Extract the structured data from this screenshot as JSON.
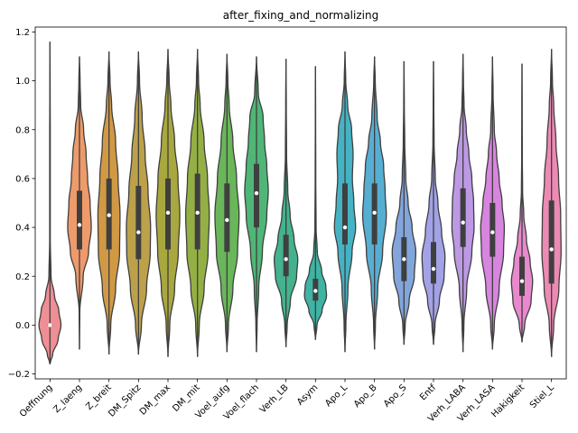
{
  "chart_data": {
    "type": "violin",
    "title": "after_fixing_and_normalizing",
    "xlabel": "",
    "ylabel": "",
    "ylim": [
      -0.22,
      1.22
    ],
    "yticks": [
      -0.2,
      0.0,
      0.2,
      0.4,
      0.6,
      0.8,
      1.0,
      1.2
    ],
    "ytick_labels": [
      "−0.2",
      "0.0",
      "0.2",
      "0.4",
      "0.6",
      "0.8",
      "1.0",
      "1.2"
    ],
    "grid": false,
    "legend": "none",
    "categories": [
      "Oeffnung",
      "Z_laeng",
      "Z_breit",
      "DM_Spitz",
      "DM_max",
      "DM_mit",
      "Voel_aufg",
      "Voel_flach",
      "Verh_LB",
      "Asym",
      "Apo_L",
      "Apo_B",
      "Apo_S",
      "Entf",
      "Verh_LABA",
      "Verh_LASA",
      "Hakigkeit",
      "Stiel_L"
    ],
    "colors": [
      "#ef8e94",
      "#ee9a6a",
      "#d19944",
      "#bca14a",
      "#a9a83e",
      "#94b045",
      "#6ab65a",
      "#4fb677",
      "#44b28f",
      "#3fb3a4",
      "#45b3c4",
      "#57aed3",
      "#82a6dc",
      "#a3a2e7",
      "#bd99e5",
      "#d785df",
      "#e889cd",
      "#ec8ab3"
    ],
    "violins": [
      {
        "min": -0.16,
        "q1": 0.0,
        "median": 0.0,
        "q3": 0.0,
        "max": 1.16,
        "shape": [
          [
            -0.16,
            0.0
          ],
          [
            -0.12,
            0.18
          ],
          [
            -0.06,
            0.55
          ],
          [
            0.0,
            0.75
          ],
          [
            0.06,
            0.6
          ],
          [
            0.12,
            0.3
          ],
          [
            0.2,
            0.07
          ],
          [
            0.35,
            0.02
          ],
          [
            0.5,
            0.02
          ],
          [
            0.75,
            0.02
          ],
          [
            1.0,
            0.01
          ],
          [
            1.16,
            0.0
          ]
        ]
      },
      {
        "min": -0.1,
        "q1": 0.31,
        "median": 0.41,
        "q3": 0.55,
        "max": 1.1,
        "shape": [
          [
            -0.1,
            0.0
          ],
          [
            0.05,
            0.02
          ],
          [
            0.2,
            0.25
          ],
          [
            0.3,
            0.62
          ],
          [
            0.4,
            0.8
          ],
          [
            0.5,
            0.72
          ],
          [
            0.6,
            0.55
          ],
          [
            0.7,
            0.45
          ],
          [
            0.8,
            0.28
          ],
          [
            0.9,
            0.08
          ],
          [
            1.0,
            0.04
          ],
          [
            1.1,
            0.0
          ]
        ]
      },
      {
        "min": -0.12,
        "q1": 0.31,
        "median": 0.45,
        "q3": 0.6,
        "max": 1.12,
        "shape": [
          [
            -0.12,
            0.0
          ],
          [
            0.0,
            0.12
          ],
          [
            0.15,
            0.45
          ],
          [
            0.3,
            0.72
          ],
          [
            0.45,
            0.75
          ],
          [
            0.6,
            0.62
          ],
          [
            0.75,
            0.45
          ],
          [
            0.9,
            0.18
          ],
          [
            1.0,
            0.07
          ],
          [
            1.12,
            0.0
          ]
        ]
      },
      {
        "min": -0.12,
        "q1": 0.27,
        "median": 0.38,
        "q3": 0.57,
        "max": 1.12,
        "shape": [
          [
            -0.12,
            0.0
          ],
          [
            0.0,
            0.2
          ],
          [
            0.15,
            0.55
          ],
          [
            0.3,
            0.8
          ],
          [
            0.4,
            0.82
          ],
          [
            0.55,
            0.65
          ],
          [
            0.7,
            0.45
          ],
          [
            0.85,
            0.25
          ],
          [
            1.0,
            0.07
          ],
          [
            1.12,
            0.0
          ]
        ]
      },
      {
        "min": -0.13,
        "q1": 0.31,
        "median": 0.46,
        "q3": 0.6,
        "max": 1.13,
        "shape": [
          [
            -0.13,
            0.0
          ],
          [
            0.0,
            0.12
          ],
          [
            0.15,
            0.45
          ],
          [
            0.3,
            0.7
          ],
          [
            0.45,
            0.8
          ],
          [
            0.6,
            0.68
          ],
          [
            0.75,
            0.45
          ],
          [
            0.9,
            0.2
          ],
          [
            1.0,
            0.08
          ],
          [
            1.13,
            0.0
          ]
        ]
      },
      {
        "min": -0.13,
        "q1": 0.31,
        "median": 0.46,
        "q3": 0.62,
        "max": 1.13,
        "shape": [
          [
            -0.13,
            0.0
          ],
          [
            0.0,
            0.12
          ],
          [
            0.15,
            0.45
          ],
          [
            0.3,
            0.72
          ],
          [
            0.45,
            0.8
          ],
          [
            0.6,
            0.68
          ],
          [
            0.75,
            0.45
          ],
          [
            0.9,
            0.18
          ],
          [
            1.0,
            0.07
          ],
          [
            1.13,
            0.0
          ]
        ]
      },
      {
        "min": -0.11,
        "q1": 0.3,
        "median": 0.43,
        "q3": 0.58,
        "max": 1.11,
        "shape": [
          [
            -0.11,
            0.0
          ],
          [
            0.0,
            0.1
          ],
          [
            0.15,
            0.4
          ],
          [
            0.3,
            0.72
          ],
          [
            0.45,
            0.82
          ],
          [
            0.6,
            0.65
          ],
          [
            0.75,
            0.4
          ],
          [
            0.9,
            0.15
          ],
          [
            1.0,
            0.06
          ],
          [
            1.11,
            0.0
          ]
        ]
      },
      {
        "min": -0.11,
        "q1": 0.4,
        "median": 0.54,
        "q3": 0.66,
        "max": 1.1,
        "shape": [
          [
            -0.11,
            0.0
          ],
          [
            0.0,
            0.04
          ],
          [
            0.15,
            0.15
          ],
          [
            0.3,
            0.4
          ],
          [
            0.45,
            0.7
          ],
          [
            0.55,
            0.8
          ],
          [
            0.65,
            0.7
          ],
          [
            0.75,
            0.55
          ],
          [
            0.85,
            0.45
          ],
          [
            0.95,
            0.12
          ],
          [
            1.1,
            0.0
          ]
        ]
      },
      {
        "min": -0.09,
        "q1": 0.2,
        "median": 0.27,
        "q3": 0.37,
        "max": 1.09,
        "shape": [
          [
            -0.09,
            0.0
          ],
          [
            0.0,
            0.08
          ],
          [
            0.1,
            0.3
          ],
          [
            0.2,
            0.72
          ],
          [
            0.27,
            0.8
          ],
          [
            0.35,
            0.55
          ],
          [
            0.45,
            0.28
          ],
          [
            0.55,
            0.12
          ],
          [
            0.7,
            0.04
          ],
          [
            0.9,
            0.02
          ],
          [
            1.09,
            0.0
          ]
        ]
      },
      {
        "min": -0.06,
        "q1": 0.1,
        "median": 0.14,
        "q3": 0.19,
        "max": 1.06,
        "shape": [
          [
            -0.06,
            0.0
          ],
          [
            0.0,
            0.1
          ],
          [
            0.06,
            0.45
          ],
          [
            0.12,
            0.75
          ],
          [
            0.16,
            0.7
          ],
          [
            0.22,
            0.42
          ],
          [
            0.3,
            0.12
          ],
          [
            0.4,
            0.04
          ],
          [
            0.6,
            0.02
          ],
          [
            0.85,
            0.01
          ],
          [
            1.06,
            0.0
          ]
        ]
      },
      {
        "min": -0.11,
        "q1": 0.33,
        "median": 0.4,
        "q3": 0.58,
        "max": 1.12,
        "shape": [
          [
            -0.11,
            0.0
          ],
          [
            0.0,
            0.06
          ],
          [
            0.15,
            0.2
          ],
          [
            0.3,
            0.48
          ],
          [
            0.4,
            0.72
          ],
          [
            0.5,
            0.6
          ],
          [
            0.6,
            0.5
          ],
          [
            0.7,
            0.55
          ],
          [
            0.8,
            0.45
          ],
          [
            0.9,
            0.18
          ],
          [
            1.0,
            0.05
          ],
          [
            1.12,
            0.0
          ]
        ]
      },
      {
        "min": -0.1,
        "q1": 0.33,
        "median": 0.46,
        "q3": 0.58,
        "max": 1.1,
        "shape": [
          [
            -0.1,
            0.0
          ],
          [
            0.0,
            0.06
          ],
          [
            0.15,
            0.22
          ],
          [
            0.3,
            0.55
          ],
          [
            0.45,
            0.8
          ],
          [
            0.55,
            0.72
          ],
          [
            0.65,
            0.62
          ],
          [
            0.75,
            0.4
          ],
          [
            0.85,
            0.18
          ],
          [
            1.0,
            0.05
          ],
          [
            1.1,
            0.0
          ]
        ]
      },
      {
        "min": -0.08,
        "q1": 0.18,
        "median": 0.27,
        "q3": 0.36,
        "max": 1.08,
        "shape": [
          [
            -0.08,
            0.0
          ],
          [
            0.0,
            0.08
          ],
          [
            0.1,
            0.35
          ],
          [
            0.2,
            0.7
          ],
          [
            0.3,
            0.8
          ],
          [
            0.4,
            0.55
          ],
          [
            0.5,
            0.28
          ],
          [
            0.6,
            0.12
          ],
          [
            0.75,
            0.05
          ],
          [
            0.9,
            0.02
          ],
          [
            1.08,
            0.0
          ]
        ]
      },
      {
        "min": -0.08,
        "q1": 0.17,
        "median": 0.23,
        "q3": 0.34,
        "max": 1.08,
        "shape": [
          [
            -0.08,
            0.0
          ],
          [
            0.0,
            0.1
          ],
          [
            0.1,
            0.4
          ],
          [
            0.2,
            0.72
          ],
          [
            0.28,
            0.78
          ],
          [
            0.38,
            0.55
          ],
          [
            0.5,
            0.3
          ],
          [
            0.6,
            0.12
          ],
          [
            0.75,
            0.04
          ],
          [
            0.9,
            0.02
          ],
          [
            1.08,
            0.0
          ]
        ]
      },
      {
        "min": -0.11,
        "q1": 0.32,
        "median": 0.42,
        "q3": 0.56,
        "max": 1.11,
        "shape": [
          [
            -0.11,
            0.0
          ],
          [
            0.0,
            0.06
          ],
          [
            0.15,
            0.25
          ],
          [
            0.3,
            0.6
          ],
          [
            0.4,
            0.75
          ],
          [
            0.5,
            0.72
          ],
          [
            0.6,
            0.6
          ],
          [
            0.7,
            0.4
          ],
          [
            0.8,
            0.22
          ],
          [
            0.9,
            0.07
          ],
          [
            1.0,
            0.03
          ],
          [
            1.11,
            0.0
          ]
        ]
      },
      {
        "min": -0.1,
        "q1": 0.28,
        "median": 0.38,
        "q3": 0.5,
        "max": 1.1,
        "shape": [
          [
            -0.1,
            0.0
          ],
          [
            0.0,
            0.12
          ],
          [
            0.15,
            0.45
          ],
          [
            0.3,
            0.75
          ],
          [
            0.4,
            0.8
          ],
          [
            0.5,
            0.65
          ],
          [
            0.6,
            0.45
          ],
          [
            0.7,
            0.28
          ],
          [
            0.8,
            0.12
          ],
          [
            0.95,
            0.04
          ],
          [
            1.1,
            0.0
          ]
        ]
      },
      {
        "min": -0.07,
        "q1": 0.12,
        "median": 0.18,
        "q3": 0.28,
        "max": 1.07,
        "shape": [
          [
            -0.07,
            0.0
          ],
          [
            0.0,
            0.18
          ],
          [
            0.1,
            0.62
          ],
          [
            0.18,
            0.72
          ],
          [
            0.26,
            0.55
          ],
          [
            0.35,
            0.3
          ],
          [
            0.45,
            0.12
          ],
          [
            0.55,
            0.04
          ],
          [
            0.7,
            0.02
          ],
          [
            0.9,
            0.01
          ],
          [
            1.07,
            0.0
          ]
        ]
      },
      {
        "min": -0.13,
        "q1": 0.17,
        "median": 0.31,
        "q3": 0.51,
        "max": 1.13,
        "shape": [
          [
            -0.13,
            0.0
          ],
          [
            0.0,
            0.15
          ],
          [
            0.15,
            0.5
          ],
          [
            0.3,
            0.65
          ],
          [
            0.45,
            0.62
          ],
          [
            0.6,
            0.48
          ],
          [
            0.75,
            0.3
          ],
          [
            0.9,
            0.15
          ],
          [
            1.0,
            0.06
          ],
          [
            1.13,
            0.0
          ]
        ]
      }
    ]
  }
}
